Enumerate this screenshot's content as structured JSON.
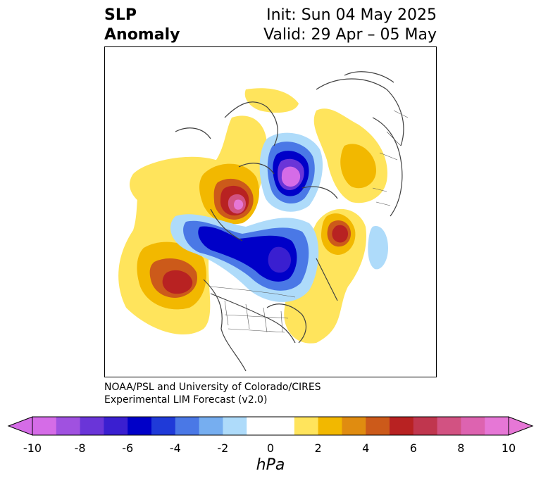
{
  "title": {
    "variable": "SLP",
    "type": "Anomaly",
    "init": "Init: Sun 04 May 2025",
    "valid": "Valid: 29 Apr – 05 May"
  },
  "credit": {
    "line1": "NOAA/PSL and University of Colorado/CIRES",
    "line2": "Experimental LIM Forecast (v2.0)"
  },
  "colorbar": {
    "unit": "hPa",
    "ticks": [
      "-10",
      "-8",
      "-6",
      "-4",
      "-2",
      "0",
      "2",
      "4",
      "6",
      "8",
      "10"
    ],
    "colors": [
      "#d56ce7",
      "#a051e0",
      "#6a35d8",
      "#3a1fd0",
      "#0000c8",
      "#1f3ad8",
      "#4a78e6",
      "#76aef0",
      "#aedbfa",
      "#ffffff",
      "#ffffff",
      "#ffe45c",
      "#f2b800",
      "#e08c10",
      "#cc5a1a",
      "#b82222",
      "#c0364e",
      "#d25282",
      "#dd63b0",
      "#e677d6"
    ]
  }
}
